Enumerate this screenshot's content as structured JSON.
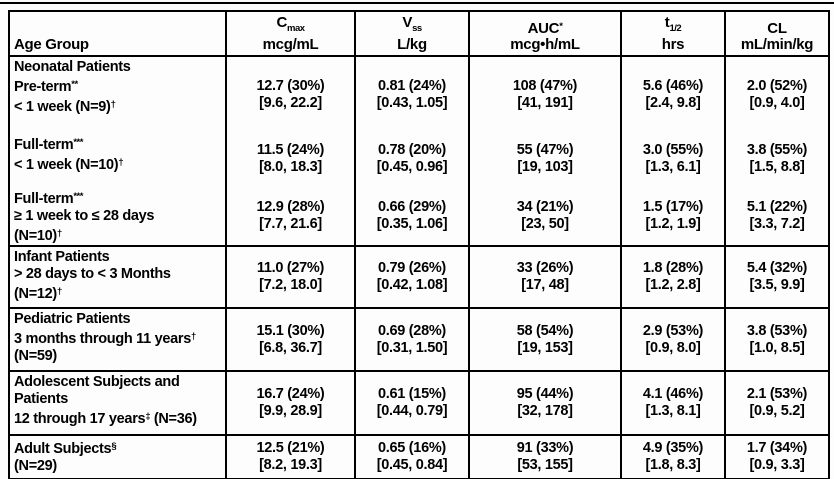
{
  "page": {
    "background_color": "#fdfdfd",
    "text_color": "#000000",
    "border_color": "#000000"
  },
  "table": {
    "columns": [
      {
        "id": "age-group",
        "header_line1": [
          {
            "t": "Age Group"
          }
        ],
        "header_line2": ""
      },
      {
        "id": "cmax",
        "header_line1": [
          {
            "t": "C"
          },
          {
            "sub": "max"
          }
        ],
        "header_line2": "mcg/mL"
      },
      {
        "id": "vss",
        "header_line1": [
          {
            "t": "V"
          },
          {
            "sub": "ss"
          }
        ],
        "header_line2": "L/kg"
      },
      {
        "id": "auc",
        "header_line1": [
          {
            "t": "AUC"
          },
          {
            "sup": "*"
          }
        ],
        "header_line2": "mcg•h/mL"
      },
      {
        "id": "thalf",
        "header_line1": [
          {
            "t": "t"
          },
          {
            "sub": "1/2"
          }
        ],
        "header_line2": "hrs"
      },
      {
        "id": "cl",
        "header_line1": [
          {
            "t": "CL"
          }
        ],
        "header_line2": "mL/min/kg"
      }
    ],
    "groups": [
      {
        "id": "neonatal",
        "rows": [
          {
            "label": [
              [
                {
                  "t": "Neonatal Patients"
                }
              ],
              [
                {
                  "t": "Pre-term"
                },
                {
                  "sup": "**"
                }
              ],
              [
                {
                  "t": "< 1 week (N=9)"
                },
                {
                  "sup": "†"
                }
              ]
            ],
            "cells": [
              [
                "12.7 (30%)",
                "[9.6, 22.2]"
              ],
              [
                "0.81 (24%)",
                "[0.43, 1.05]"
              ],
              [
                "108 (47%)",
                "[41, 191]"
              ],
              [
                "5.6 (46%)",
                "[2.4, 9.8]"
              ],
              [
                "2.0 (52%)",
                "[0.9, 4.0]"
              ]
            ]
          },
          {
            "label": [
              [
                {
                  "t": "Full-term"
                },
                {
                  "sup": "***"
                }
              ],
              [
                {
                  "t": "< 1 week (N=10)"
                },
                {
                  "sup": "†"
                }
              ]
            ],
            "cells": [
              [
                "11.5 (24%)",
                "[8.0, 18.3]"
              ],
              [
                "0.78 (20%)",
                "[0.45, 0.96]"
              ],
              [
                "55 (47%)",
                "[19, 103]"
              ],
              [
                "3.0 (55%)",
                "[1.3, 6.1]"
              ],
              [
                "3.8 (55%)",
                "[1.5, 8.8]"
              ]
            ]
          },
          {
            "label": [
              [
                {
                  "t": "Full-term"
                },
                {
                  "sup": "***"
                }
              ],
              [
                {
                  "t": "≥ 1 week to ≤ 28 days"
                }
              ],
              [
                {
                  "t": "(N=10)"
                },
                {
                  "sup": "†"
                }
              ]
            ],
            "cells": [
              [
                "12.9 (28%)",
                "[7.7, 21.6]"
              ],
              [
                "0.66 (29%)",
                "[0.35, 1.06]"
              ],
              [
                "34 (21%)",
                "[23, 50]"
              ],
              [
                "1.5 (17%)",
                "[1.2, 1.9]"
              ],
              [
                "5.1 (22%)",
                "[3.3, 7.2]"
              ]
            ]
          }
        ]
      },
      {
        "id": "infant",
        "rows": [
          {
            "label": [
              [
                {
                  "t": "Infant Patients"
                }
              ],
              [
                {
                  "t": "> 28 days to < 3 Months"
                }
              ],
              [
                {
                  "t": "(N=12)"
                },
                {
                  "sup": "†"
                }
              ]
            ],
            "cells": [
              [
                "11.0 (27%)",
                "[7.2, 18.0]"
              ],
              [
                "0.79 (26%)",
                "[0.42, 1.08]"
              ],
              [
                "33 (26%)",
                "[17, 48]"
              ],
              [
                "1.8 (28%)",
                "[1.2, 2.8]"
              ],
              [
                "5.4 (32%)",
                "[3.5, 9.9]"
              ]
            ]
          }
        ]
      },
      {
        "id": "pediatric",
        "rows": [
          {
            "label": [
              [
                {
                  "t": "Pediatric Patients"
                }
              ],
              [
                {
                  "t": "3 months through 11 years"
                },
                {
                  "sup": "†"
                }
              ],
              [
                {
                  "t": "(N=59)"
                }
              ]
            ],
            "cells": [
              [
                "15.1 (30%)",
                "[6.8, 36.7]"
              ],
              [
                "0.69 (28%)",
                "[0.31, 1.50]"
              ],
              [
                "58 (54%)",
                "[19, 153]"
              ],
              [
                "2.9 (53%)",
                "[0.9, 8.0]"
              ],
              [
                "3.8 (53%)",
                "[1.0, 8.5]"
              ]
            ]
          }
        ]
      },
      {
        "id": "adolescent",
        "rows": [
          {
            "label": [
              [
                {
                  "t": "Adolescent Subjects and"
                }
              ],
              [
                {
                  "t": "Patients"
                }
              ],
              [
                {
                  "t": "12 through 17 years"
                },
                {
                  "sup": "‡"
                },
                {
                  "t": " (N=36)"
                }
              ]
            ],
            "cells": [
              [
                "16.7 (24%)",
                "[9.9, 28.9]"
              ],
              [
                "0.61 (15%)",
                "[0.44, 0.79]"
              ],
              [
                "95 (44%)",
                "[32, 178]"
              ],
              [
                "4.1 (46%)",
                "[1.3, 8.1]"
              ],
              [
                "2.1 (53%)",
                "[0.9, 5.2]"
              ]
            ]
          }
        ]
      },
      {
        "id": "adult",
        "rows": [
          {
            "label": [
              [
                {
                  "t": "Adult Subjects"
                },
                {
                  "sup": "§"
                }
              ],
              [
                {
                  "t": "(N=29)"
                }
              ]
            ],
            "cells": [
              [
                "12.5 (21%)",
                "[8.2, 19.3]"
              ],
              [
                "0.65 (16%)",
                "[0.45, 0.84]"
              ],
              [
                "91 (33%)",
                "[53, 155]"
              ],
              [
                "4.9 (35%)",
                "[1.8, 8.3]"
              ],
              [
                "1.7 (34%)",
                "[0.9, 3.3]"
              ]
            ]
          }
        ]
      }
    ]
  }
}
